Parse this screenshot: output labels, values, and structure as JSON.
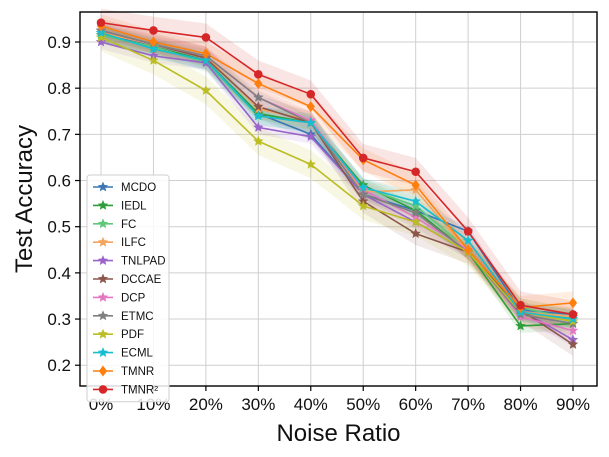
{
  "chart_data": {
    "type": "line",
    "title": "",
    "xlabel": "Noise Ratio",
    "ylabel": "Test Accuracy",
    "categories": [
      "0%",
      "10%",
      "20%",
      "30%",
      "40%",
      "50%",
      "60%",
      "70%",
      "80%",
      "90%"
    ],
    "ylim": [
      0.155,
      0.965
    ],
    "yticks": [
      0.2,
      0.3,
      0.4,
      0.5,
      0.6,
      0.7,
      0.8,
      0.9
    ],
    "ytick_labels": [
      "0.2",
      "0.3",
      "0.4",
      "0.5",
      "0.6",
      "0.7",
      "0.8",
      "0.9"
    ],
    "grid": true,
    "legend_position": "lower-left",
    "series": [
      {
        "name": "MCDO",
        "color": "#3a76b3",
        "marker": "star",
        "values": [
          0.92,
          0.89,
          0.86,
          0.745,
          0.7,
          0.57,
          0.535,
          0.49,
          0.32,
          0.31
        ],
        "band": 0.012
      },
      {
        "name": "IEDL",
        "color": "#2d9e3a",
        "marker": "star",
        "values": [
          0.915,
          0.89,
          0.86,
          0.745,
          0.725,
          0.59,
          0.535,
          0.445,
          0.285,
          0.29
        ],
        "band": 0.015
      },
      {
        "name": "FC",
        "color": "#5fc77a",
        "marker": "star",
        "values": [
          0.915,
          0.89,
          0.855,
          0.74,
          0.725,
          0.585,
          0.545,
          0.45,
          0.325,
          0.3
        ],
        "band": 0.02
      },
      {
        "name": "ILFC",
        "color": "#f4a55c",
        "marker": "star",
        "values": [
          0.92,
          0.895,
          0.87,
          0.755,
          0.73,
          0.575,
          0.58,
          0.445,
          0.315,
          0.305
        ],
        "band": 0.02
      },
      {
        "name": "TNLPAD",
        "color": "#9a64c8",
        "marker": "star",
        "values": [
          0.9,
          0.87,
          0.855,
          0.715,
          0.695,
          0.57,
          0.51,
          0.445,
          0.32,
          0.255
        ],
        "band": 0.015
      },
      {
        "name": "DCCAE",
        "color": "#8c564b",
        "marker": "star",
        "values": [
          0.925,
          0.895,
          0.865,
          0.76,
          0.725,
          0.555,
          0.485,
          0.445,
          0.32,
          0.245
        ],
        "band": 0.025
      },
      {
        "name": "DCP",
        "color": "#e377c2",
        "marker": "star",
        "values": [
          0.925,
          0.895,
          0.87,
          0.78,
          0.73,
          0.58,
          0.52,
          0.45,
          0.305,
          0.275
        ],
        "band": 0.02
      },
      {
        "name": "ETMC",
        "color": "#7f7f7f",
        "marker": "star",
        "values": [
          0.925,
          0.895,
          0.87,
          0.78,
          0.725,
          0.57,
          0.53,
          0.445,
          0.31,
          0.29
        ],
        "band": 0.015
      },
      {
        "name": "PDF",
        "color": "#bcbd22",
        "marker": "star",
        "values": [
          0.91,
          0.86,
          0.795,
          0.685,
          0.635,
          0.545,
          0.51,
          0.445,
          0.315,
          0.295
        ],
        "band": 0.03
      },
      {
        "name": "ECML",
        "color": "#17becf",
        "marker": "star",
        "values": [
          0.92,
          0.885,
          0.86,
          0.74,
          0.725,
          0.585,
          0.555,
          0.47,
          0.315,
          0.3
        ],
        "band": 0.02
      },
      {
        "name": "TMNR",
        "color": "#ff7f0e",
        "marker": "diamond",
        "values": [
          0.935,
          0.9,
          0.875,
          0.81,
          0.76,
          0.645,
          0.59,
          0.45,
          0.325,
          0.335
        ],
        "band": 0.025
      },
      {
        "name": "TMNR²",
        "color": "#d62728",
        "marker": "circle",
        "values": [
          0.942,
          0.925,
          0.91,
          0.83,
          0.787,
          0.649,
          0.619,
          0.49,
          0.33,
          0.31
        ],
        "band": 0.03
      }
    ]
  }
}
